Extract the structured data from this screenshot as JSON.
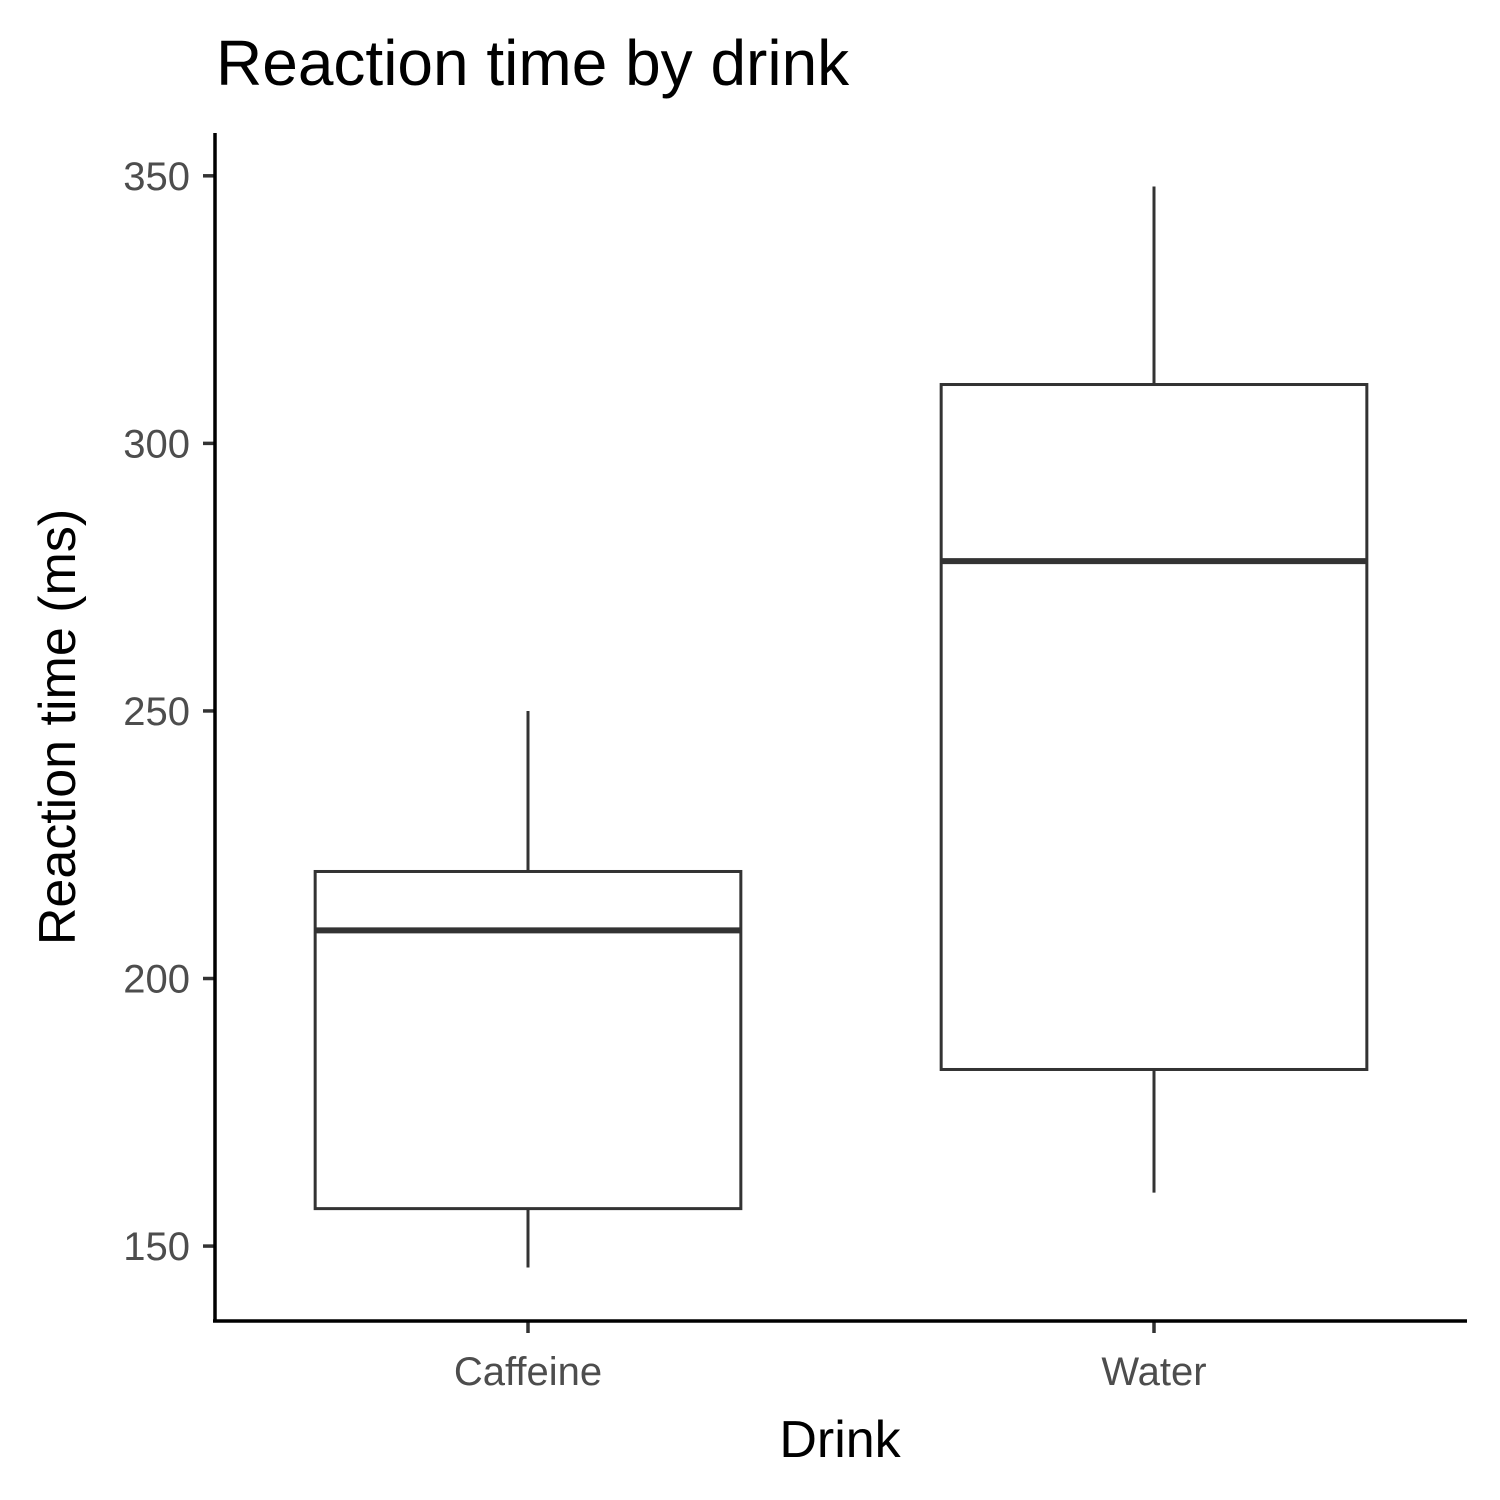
{
  "chart_data": {
    "type": "boxplot",
    "title": "Reaction time by drink",
    "xlabel": "Drink",
    "ylabel": "Reaction time (ms)",
    "categories": [
      "Caffeine",
      "Water"
    ],
    "ylim": [
      136,
      358
    ],
    "yticks": [
      150,
      200,
      250,
      300,
      350
    ],
    "grid": false,
    "legend": "none",
    "boxes": [
      {
        "category": "Caffeine",
        "whisker_low": 146,
        "q1": 157,
        "median": 209,
        "q3": 220,
        "whisker_high": 250
      },
      {
        "category": "Water",
        "whisker_low": 160,
        "q1": 183,
        "median": 278,
        "q3": 311,
        "whisker_high": 348
      }
    ],
    "colors": {
      "box_stroke": "#333333",
      "box_fill": "#ffffff",
      "axis": "#000000",
      "tick_text": "#4d4d4d"
    }
  }
}
